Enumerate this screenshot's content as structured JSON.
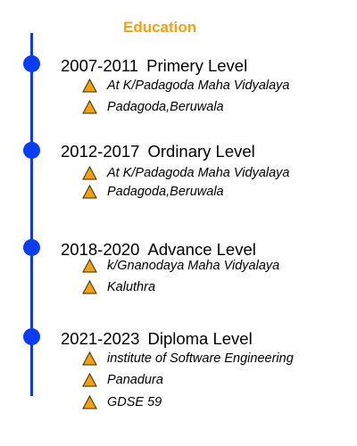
{
  "title": "Education",
  "colors": {
    "title": "#f5a00f",
    "timeline": "#1437e6",
    "dot": "#0b3df0",
    "triangle_fill": "#f5a00f",
    "triangle_stroke": "#3a2a00"
  },
  "entries": [
    {
      "years": "2007-2011",
      "level": "Primery Level",
      "details": [
        "At K/Padagoda Maha Vidyalaya",
        "Padagoda,Beruwala"
      ]
    },
    {
      "years": "2012-2017",
      "level": "Ordinary Level",
      "details": [
        "At K/Padagoda Maha Vidyalaya",
        "Padagoda,Beruwala"
      ]
    },
    {
      "years": "2018-2020",
      "level": "Advance Level",
      "details": [
        " k/Gnanodaya Maha Vidyalaya",
        "Kaluthra"
      ]
    },
    {
      "years": "2021-2023",
      "level": "Diploma Level",
      "details": [
        "institute of Software Engineering",
        "Panadura",
        "GDSE 59"
      ]
    }
  ]
}
